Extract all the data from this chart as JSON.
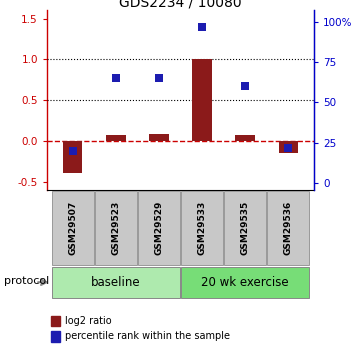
{
  "title": "GDS2234 / 10080",
  "samples": [
    "GSM29507",
    "GSM29523",
    "GSM29529",
    "GSM29533",
    "GSM29535",
    "GSM29536"
  ],
  "log2_ratio": [
    -0.4,
    0.07,
    0.08,
    1.0,
    0.07,
    -0.15
  ],
  "percentile_rank": [
    20,
    65,
    65,
    97,
    60,
    22
  ],
  "ylim_left": [
    -0.6,
    1.6
  ],
  "ylim_right": [
    -4,
    107
  ],
  "yticks_left": [
    -0.5,
    0.0,
    0.5,
    1.0,
    1.5
  ],
  "yticks_right": [
    0,
    25,
    50,
    75,
    100
  ],
  "ytick_labels_right": [
    "0",
    "25",
    "50",
    "75",
    "100%"
  ],
  "hlines": [
    0.5,
    1.0
  ],
  "dashed_hline": 0.0,
  "bar_color": "#8B1A1A",
  "marker_color": "#1C1CB0",
  "baseline_label": "baseline",
  "exercise_label": "20 wk exercise",
  "protocol_label": "protocol",
  "baseline_color": "#AEEAAE",
  "exercise_color": "#77DD77",
  "sample_box_color": "#C8C8C8",
  "legend_red_label": "log2 ratio",
  "legend_blue_label": "percentile rank within the sample",
  "bar_width": 0.45,
  "marker_size": 6,
  "left_tick_color": "#CC0000",
  "right_tick_color": "#0000CC"
}
